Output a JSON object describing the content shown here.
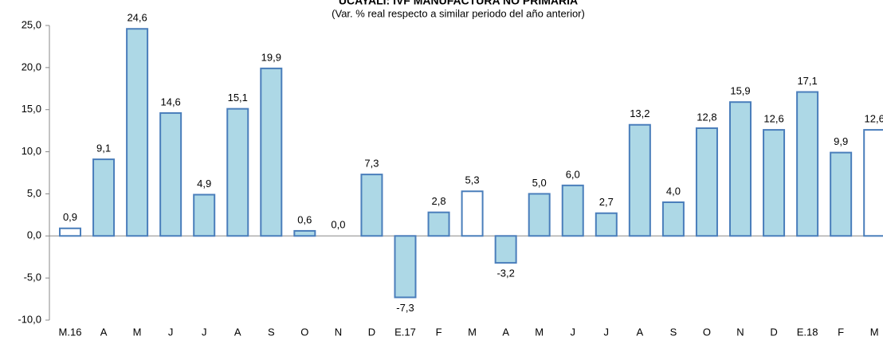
{
  "chart_data": {
    "type": "bar",
    "title": "UCAYALI: IVF MANUFACTURA NO PRIMARIA",
    "subtitle": "(Var. % real respecto a similar periodo del año anterior)",
    "categories": [
      "M.16",
      "A",
      "M",
      "J",
      "J",
      "A",
      "S",
      "O",
      "N",
      "D",
      "E.17",
      "F",
      "M",
      "A",
      "M",
      "J",
      "J",
      "A",
      "S",
      "O",
      "N",
      "D",
      "E.18",
      "F",
      "M"
    ],
    "values": [
      0.9,
      9.1,
      24.6,
      14.6,
      4.9,
      15.1,
      19.9,
      0.6,
      0.0,
      7.3,
      -7.3,
      2.8,
      5.3,
      -3.2,
      5.0,
      6.0,
      2.7,
      13.2,
      4.0,
      12.8,
      15.9,
      12.6,
      17.1,
      9.9,
      12.6
    ],
    "value_labels": [
      "0,9",
      "9,1",
      "24,6",
      "14,6",
      "4,9",
      "15,1",
      "19,9",
      "0,6",
      "0,0",
      "7,3",
      "-7,3",
      "2,8",
      "5,3",
      "-3,2",
      "5,0",
      "6,0",
      "2,7",
      "13,2",
      "4,0",
      "12,8",
      "15,9",
      "12,6",
      "17,1",
      "9,9",
      "12,6"
    ],
    "colors": [
      "#ffffff",
      "#add8e6",
      "#add8e6",
      "#add8e6",
      "#add8e6",
      "#add8e6",
      "#add8e6",
      "#add8e6",
      "#add8e6",
      "#add8e6",
      "#add8e6",
      "#add8e6",
      "#ffffff",
      "#add8e6",
      "#add8e6",
      "#add8e6",
      "#add8e6",
      "#add8e6",
      "#add8e6",
      "#add8e6",
      "#add8e6",
      "#add8e6",
      "#add8e6",
      "#add8e6",
      "#ffffff"
    ],
    "edge_color": "#4a7ebb",
    "ylim": [
      -10,
      25
    ],
    "yticks": [
      {
        "value": -10,
        "label": "-10,0"
      },
      {
        "value": -5,
        "label": "-5,0"
      },
      {
        "value": 0,
        "label": "0,0"
      },
      {
        "value": 5,
        "label": "5,0"
      },
      {
        "value": 10,
        "label": "10,0"
      },
      {
        "value": 15,
        "label": "15,0"
      },
      {
        "value": 20,
        "label": "20,0"
      },
      {
        "value": 25,
        "label": "25,0"
      }
    ],
    "grid": false
  }
}
